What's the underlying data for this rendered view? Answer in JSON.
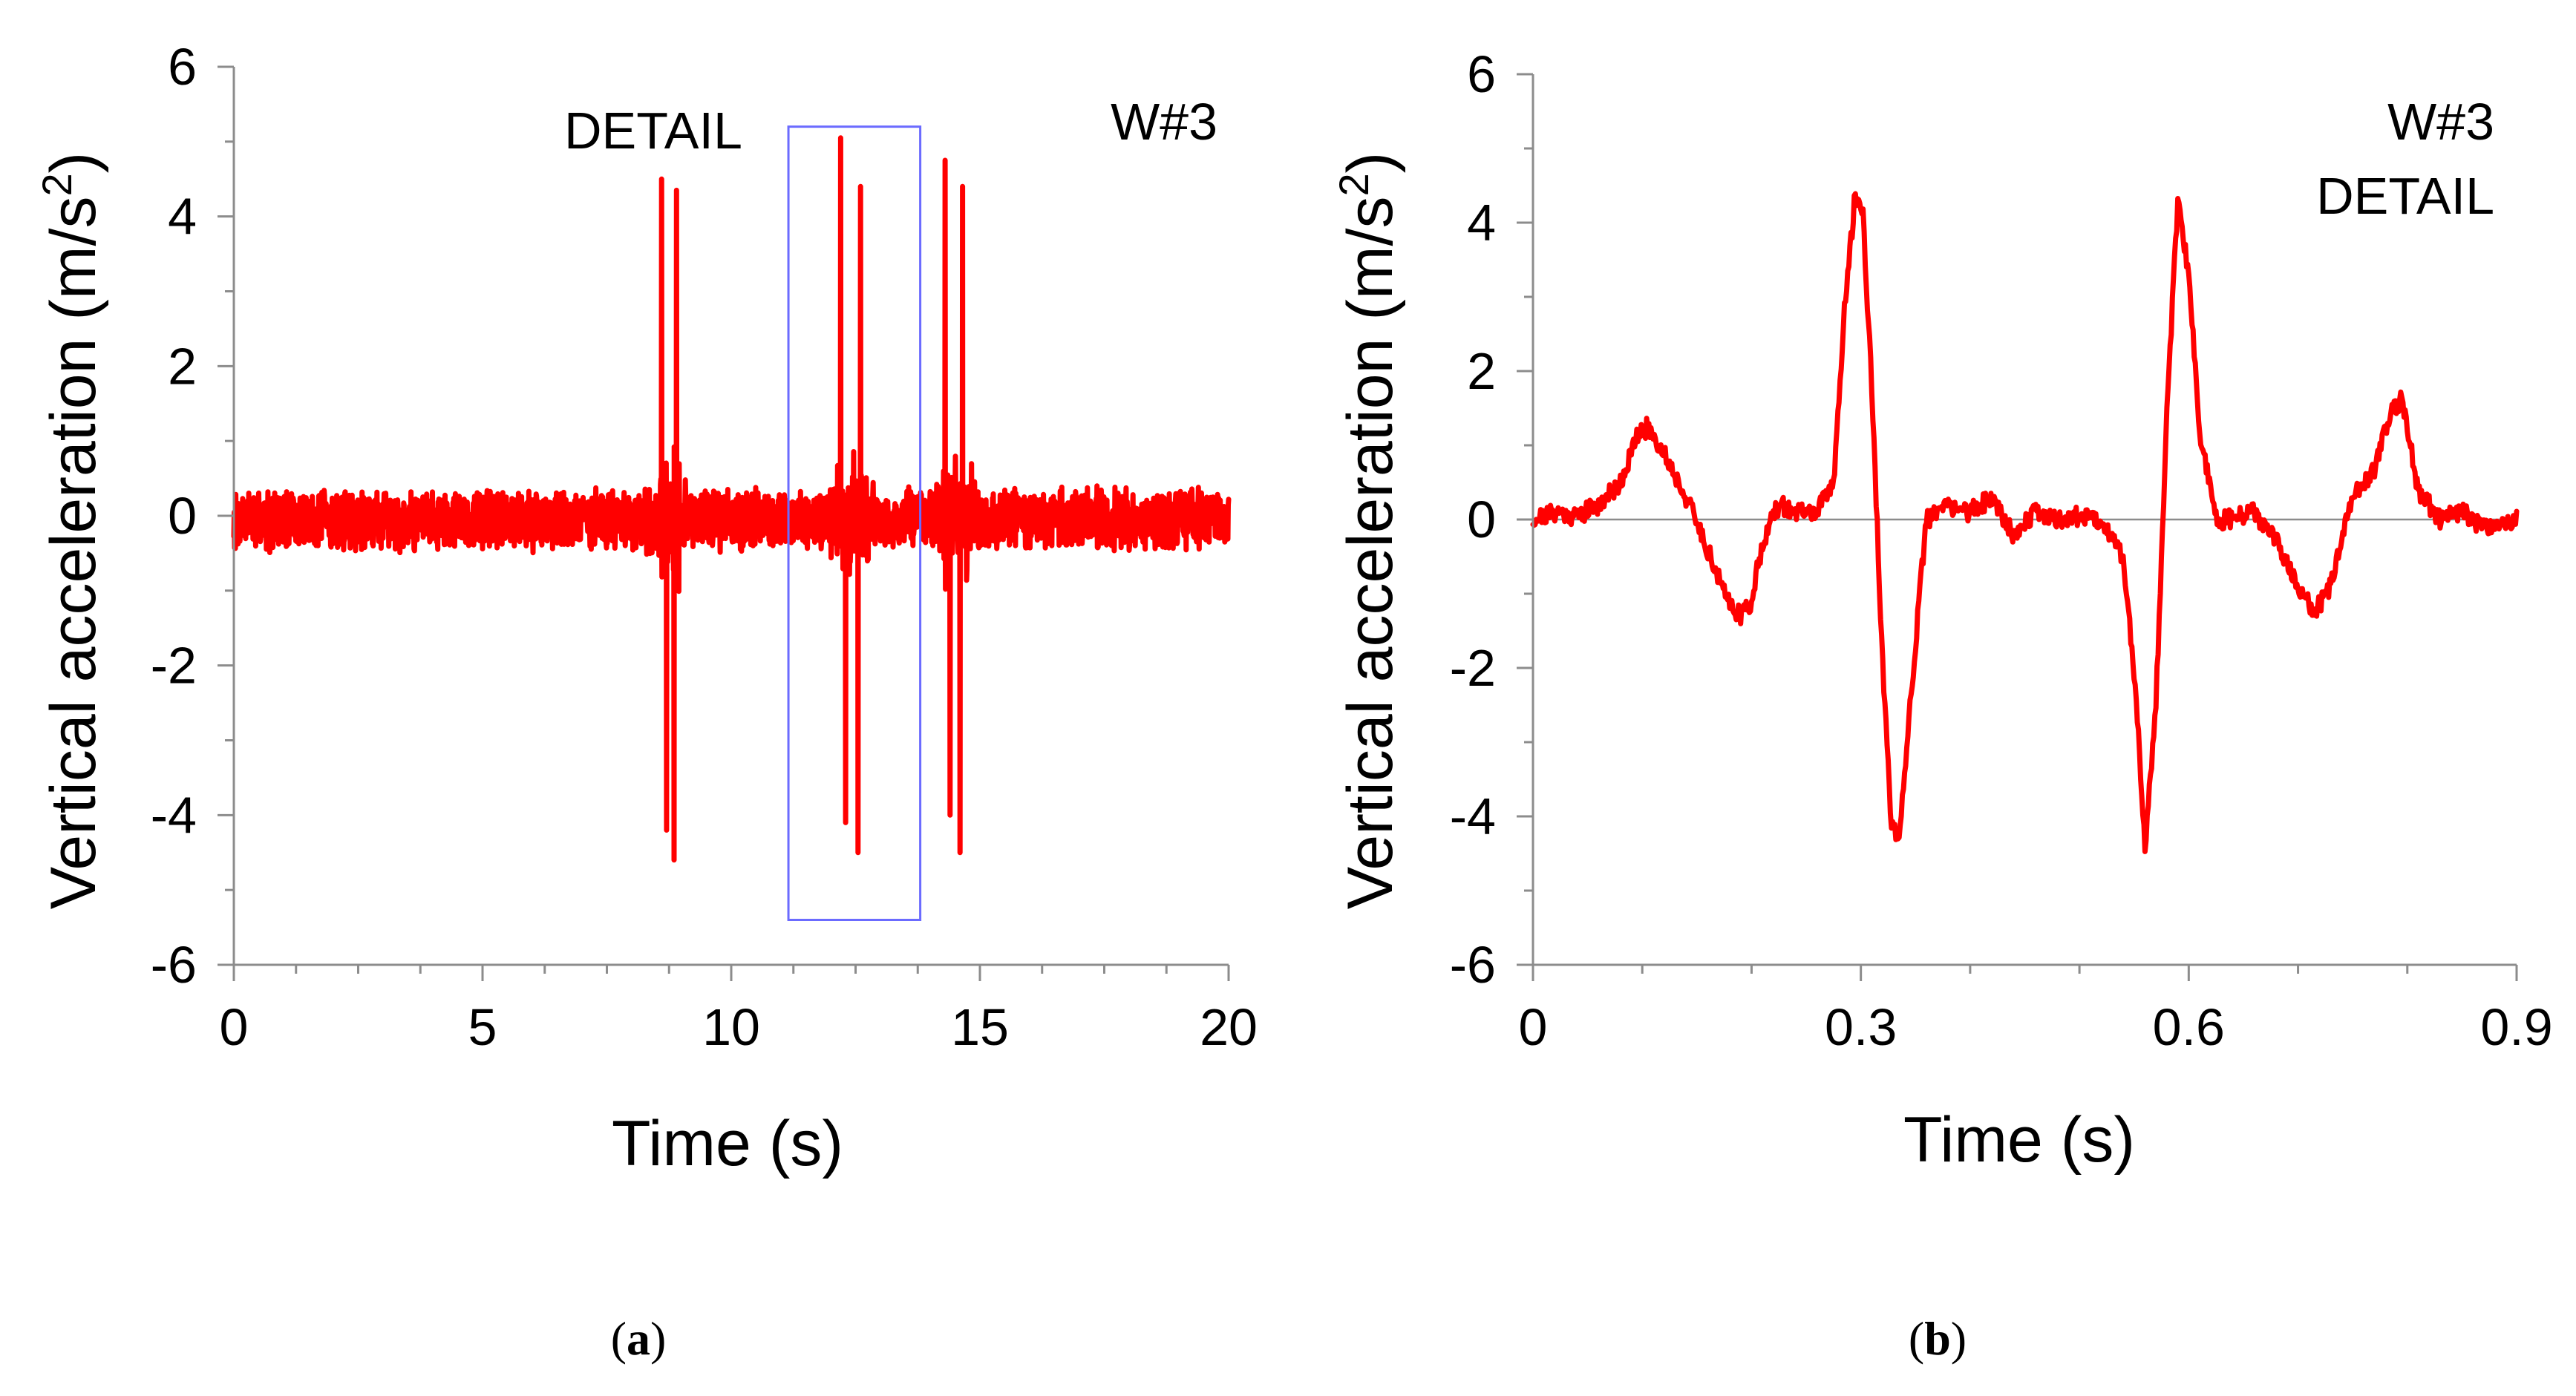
{
  "chart_data": [
    {
      "panel": "a",
      "type": "line",
      "title": "",
      "xlabel": "Time  (s)",
      "ylabel": "Vertical acceleration  (m/s",
      "ylabel_sup": "2",
      "ylabel_end": ")",
      "xlim": [
        0,
        20
      ],
      "ylim": [
        -6,
        6
      ],
      "xticks": [
        0,
        5,
        10,
        15,
        20
      ],
      "xtick_labels": [
        "0",
        "5",
        "10",
        "15",
        "20"
      ],
      "yticks": [
        -6,
        -4,
        -2,
        0,
        2,
        4,
        6
      ],
      "ytick_labels": [
        "-6",
        "-4",
        "-2",
        "0",
        "2",
        "4",
        "6"
      ],
      "annotations": {
        "detail_label": "DETAIL",
        "wagon_label": "W#3"
      },
      "detail_window": {
        "x": [
          11.15,
          13.8
        ],
        "y": [
          -5.4,
          5.2
        ]
      },
      "noise_amplitude": 0.45,
      "peaks": [
        {
          "t": 8.6,
          "value": 4.5
        },
        {
          "t": 8.7,
          "value": -4.2
        },
        {
          "t": 8.9,
          "value": 4.35
        },
        {
          "t": 8.85,
          "value": -4.6
        },
        {
          "t": 12.2,
          "value": 5.05
        },
        {
          "t": 12.3,
          "value": -4.1
        },
        {
          "t": 12.6,
          "value": 4.4
        },
        {
          "t": 12.55,
          "value": -4.5
        },
        {
          "t": 14.3,
          "value": 4.75
        },
        {
          "t": 14.4,
          "value": -4.0
        },
        {
          "t": 14.65,
          "value": 4.4
        },
        {
          "t": 14.6,
          "value": -4.5
        }
      ],
      "series": [
        {
          "name": "W#3",
          "color": "#ff0000"
        }
      ]
    },
    {
      "panel": "b",
      "type": "line",
      "title": "",
      "xlabel": "Time  (s)",
      "ylabel": "Vertical acceleration  (m/s",
      "ylabel_sup": "2",
      "ylabel_end": ")",
      "xlim": [
        0,
        0.9
      ],
      "ylim": [
        -6,
        6
      ],
      "xticks": [
        0,
        0.3,
        0.6,
        0.9
      ],
      "xtick_labels": [
        "0",
        "0.3",
        "0.6",
        "0.9"
      ],
      "yticks": [
        -6,
        -4,
        -2,
        0,
        2,
        4,
        6
      ],
      "ytick_labels": [
        "-6",
        "-4",
        "-2",
        "0",
        "2",
        "4",
        "6"
      ],
      "annotations": {
        "wagon_label": "W#3",
        "detail_label": "DETAIL"
      },
      "series": [
        {
          "name": "W#3 detail",
          "color": "#ff0000",
          "x": [
            0,
            0.02,
            0.04,
            0.06,
            0.08,
            0.095,
            0.105,
            0.12,
            0.14,
            0.16,
            0.175,
            0.19,
            0.2,
            0.21,
            0.225,
            0.24,
            0.26,
            0.275,
            0.285,
            0.295,
            0.302,
            0.31,
            0.32,
            0.328,
            0.335,
            0.345,
            0.36,
            0.38,
            0.4,
            0.42,
            0.44,
            0.46,
            0.48,
            0.5,
            0.52,
            0.54,
            0.552,
            0.56,
            0.57,
            0.58,
            0.59,
            0.6,
            0.61,
            0.625,
            0.64,
            0.66,
            0.68,
            0.7,
            0.715,
            0.73,
            0.75,
            0.77,
            0.785,
            0.795,
            0.81,
            0.83,
            0.85,
            0.87,
            0.9
          ],
          "y": [
            0.0,
            0.1,
            0.05,
            0.2,
            0.5,
            1.1,
            1.25,
            0.9,
            0.3,
            -0.4,
            -1.0,
            -1.3,
            -1.1,
            -0.3,
            0.2,
            0.1,
            0.1,
            0.5,
            2.8,
            4.4,
            4.1,
            1.8,
            -2.0,
            -4.1,
            -4.4,
            -2.5,
            0.0,
            0.2,
            0.1,
            0.3,
            -0.2,
            0.1,
            0.0,
            0.05,
            0.0,
            -0.5,
            -2.4,
            -4.4,
            -2.5,
            1.5,
            4.25,
            3.3,
            1.2,
            0.0,
            0.0,
            0.1,
            -0.3,
            -0.9,
            -1.25,
            -0.9,
            0.3,
            0.7,
            1.5,
            1.6,
            0.4,
            0.0,
            0.1,
            -0.1,
            0.0
          ]
        }
      ]
    }
  ],
  "captions": {
    "a": "a",
    "b": "b"
  }
}
